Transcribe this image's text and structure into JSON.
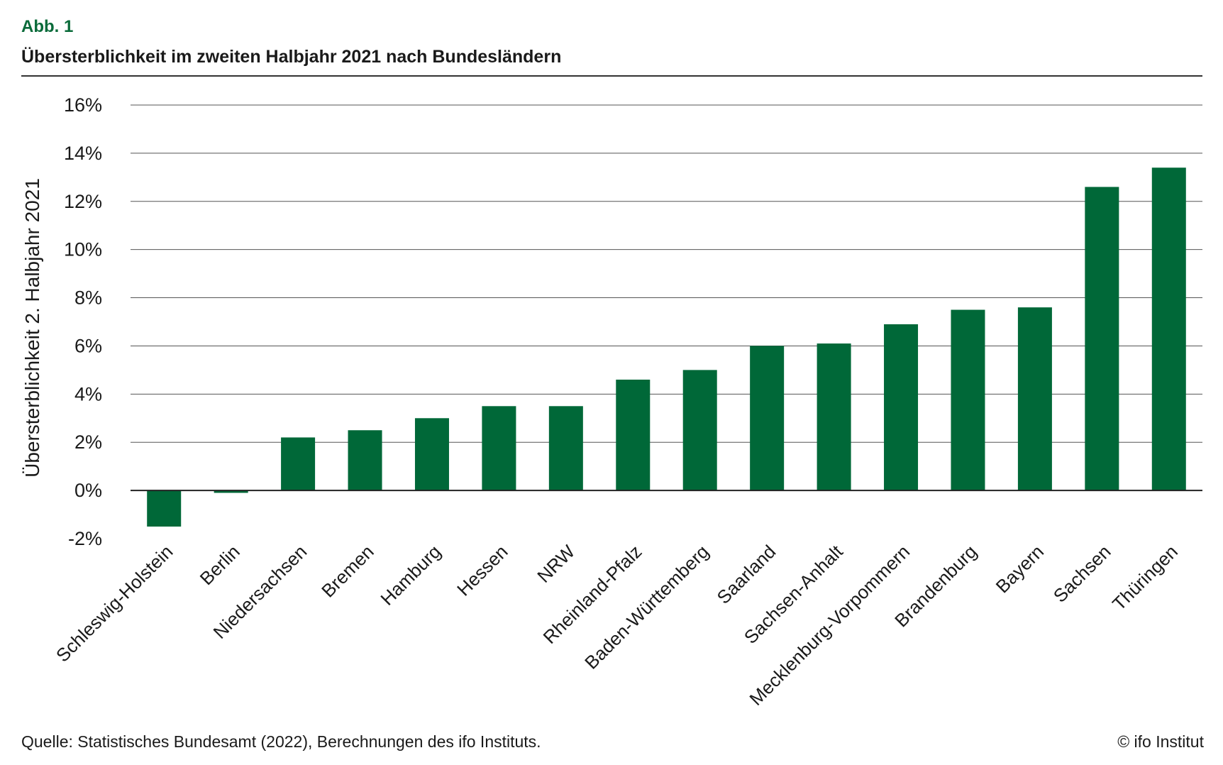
{
  "figure": {
    "label": "Abb. 1",
    "title": "Übersterblichkeit im zweiten Halbjahr 2021 nach Bundesländern",
    "source": "Quelle: Statistisches Bundesamt (2022), Berechnungen des ifo Instituts.",
    "copyright": "© ifo Institut"
  },
  "colors": {
    "bar": "#006838",
    "grid": "#555555",
    "label": "#0a6b3a"
  },
  "chart_data": {
    "type": "bar",
    "title": "Übersterblichkeit im zweiten Halbjahr 2021 nach Bundesländern",
    "xlabel": "",
    "ylabel": "Übersterblichkeit 2. Halbjahr 2021",
    "ylim": [
      -2,
      16
    ],
    "yticks": [
      -2,
      0,
      2,
      4,
      6,
      8,
      10,
      12,
      14,
      16
    ],
    "ytick_labels": [
      "-2%",
      "0%",
      "2%",
      "4%",
      "6%",
      "8%",
      "10%",
      "12%",
      "14%",
      "16%"
    ],
    "grid": true,
    "categories": [
      "Schleswig-Holstein",
      "Berlin",
      "Niedersachsen",
      "Bremen",
      "Hamburg",
      "Hessen",
      "NRW",
      "Rheinland-Pfalz",
      "Baden-Württemberg",
      "Saarland",
      "Sachsen-Anhalt",
      "Mecklenburg-Vorpommern",
      "Brandenburg",
      "Bayern",
      "Sachsen",
      "Thüringen"
    ],
    "values": [
      -1.5,
      -0.1,
      2.2,
      2.5,
      3.0,
      3.5,
      3.5,
      4.6,
      5.0,
      6.0,
      6.1,
      6.9,
      7.5,
      7.6,
      12.6,
      13.4
    ]
  }
}
